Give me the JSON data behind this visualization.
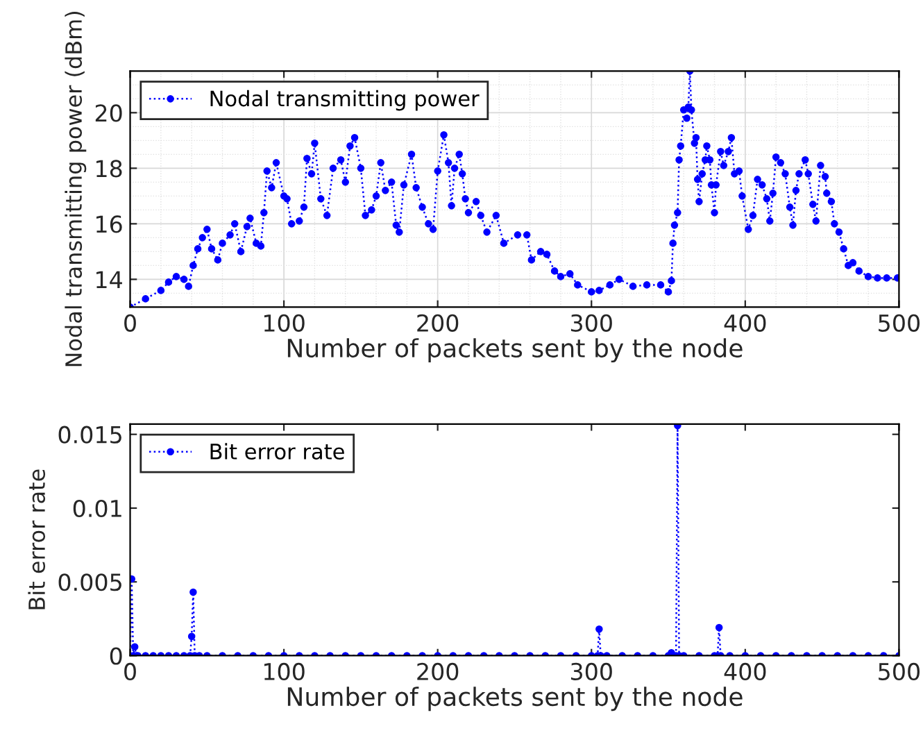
{
  "chart_data": [
    {
      "type": "line",
      "xlabel": "Number of packets sent by the node",
      "ylabel": "Nodal transmitting power (dBm)",
      "xlim": [
        0,
        500
      ],
      "ylim": [
        13,
        21.5
      ],
      "xticks": [
        0,
        100,
        200,
        300,
        400,
        500
      ],
      "yticks": [
        14,
        16,
        18,
        20
      ],
      "grid": true,
      "legend": "top left",
      "marker": "circle",
      "line_style": "dotted",
      "series": [
        {
          "name": "Nodal transmitting power",
          "color": "#0000ff",
          "x": [
            0,
            10,
            20,
            25,
            30,
            35,
            38,
            41,
            44,
            47,
            50,
            53,
            57,
            60,
            65,
            68,
            72,
            76,
            78,
            82,
            85,
            87,
            89,
            92,
            95,
            100,
            102,
            105,
            110,
            113,
            115,
            118,
            120,
            124,
            128,
            132,
            137,
            140,
            143,
            146,
            150,
            153,
            157,
            160,
            163,
            166,
            170,
            173,
            175,
            178,
            183,
            186,
            190,
            194,
            197,
            200,
            204,
            207,
            209,
            211,
            214,
            216,
            218,
            220,
            225,
            228,
            232,
            238,
            243,
            252,
            258,
            261,
            267,
            271,
            276,
            280,
            286,
            291,
            300,
            305,
            312,
            318,
            327,
            336,
            345,
            350,
            352,
            353,
            354,
            356,
            357,
            358,
            360,
            362,
            363,
            364,
            365,
            367,
            368,
            369,
            370,
            372,
            374,
            375,
            377,
            378,
            380,
            381,
            384,
            386,
            389,
            391,
            393,
            396,
            398,
            402,
            405,
            408,
            411,
            414,
            416,
            418,
            420,
            423,
            426,
            429,
            431,
            433,
            435,
            439,
            441,
            444,
            446,
            449,
            452,
            453,
            456,
            458,
            461,
            464,
            467,
            470,
            474,
            480,
            486,
            492,
            499
          ],
          "values": [
            13.0,
            13.3,
            13.6,
            13.9,
            14.1,
            14.0,
            13.75,
            14.5,
            15.1,
            15.5,
            15.8,
            15.1,
            14.7,
            15.3,
            15.6,
            16.0,
            15.0,
            15.9,
            16.2,
            15.3,
            15.2,
            16.4,
            17.9,
            17.3,
            18.2,
            17.0,
            16.9,
            16.0,
            16.1,
            16.6,
            18.35,
            17.8,
            18.9,
            16.9,
            16.3,
            18.0,
            18.3,
            17.5,
            18.8,
            19.1,
            18.0,
            16.3,
            16.5,
            17.0,
            18.2,
            17.2,
            17.5,
            15.95,
            15.7,
            17.4,
            18.5,
            17.3,
            16.6,
            16.0,
            15.8,
            17.9,
            19.2,
            18.2,
            16.65,
            18.0,
            18.5,
            17.8,
            16.9,
            16.4,
            16.8,
            16.3,
            15.7,
            16.3,
            15.3,
            15.6,
            15.6,
            14.7,
            15.0,
            14.9,
            14.3,
            14.1,
            14.2,
            13.8,
            13.55,
            13.6,
            13.8,
            14.0,
            13.75,
            13.8,
            13.8,
            13.55,
            13.95,
            15.3,
            15.95,
            16.4,
            18.3,
            18.8,
            20.1,
            19.8,
            20.2,
            21.5,
            20.1,
            18.9,
            19.1,
            17.6,
            16.8,
            17.8,
            18.3,
            18.8,
            18.3,
            17.4,
            16.4,
            17.4,
            18.6,
            18.1,
            18.6,
            19.1,
            17.8,
            17.9,
            17.0,
            15.8,
            16.3,
            17.6,
            17.4,
            16.9,
            16.1,
            17.1,
            18.4,
            18.2,
            17.8,
            16.6,
            15.95,
            17.2,
            17.8,
            18.3,
            17.8,
            16.7,
            16.1,
            18.1,
            17.7,
            17.1,
            16.8,
            16.0,
            15.7,
            15.1,
            14.5,
            14.6,
            14.3,
            14.1,
            14.05,
            14.05,
            14.05
          ]
        }
      ]
    },
    {
      "type": "line",
      "xlabel": "Number of packets sent by the node",
      "ylabel": "Bit error rate",
      "xlim": [
        0,
        500
      ],
      "ylim": [
        0,
        0.0157
      ],
      "xticks": [
        0,
        100,
        200,
        300,
        400,
        500
      ],
      "yticks": [
        0,
        {
          "value": 0.005,
          "label": "0.005"
        },
        {
          "value": 0.01,
          "label": "0.01"
        },
        {
          "value": 0.015,
          "label": "0.015"
        }
      ],
      "grid": false,
      "legend": "top left",
      "marker": "circle",
      "line_style": "dotted",
      "series": [
        {
          "name": "Bit error rate",
          "color": "#0000ff",
          "x": [
            0,
            1,
            2,
            3,
            4,
            5,
            10,
            15,
            20,
            25,
            30,
            35,
            39,
            40,
            41,
            42,
            45,
            50,
            60,
            70,
            80,
            90,
            100,
            110,
            120,
            130,
            140,
            150,
            160,
            170,
            180,
            190,
            200,
            210,
            220,
            230,
            240,
            250,
            260,
            270,
            280,
            290,
            300,
            304,
            305,
            306,
            310,
            320,
            330,
            340,
            350,
            351,
            352,
            353,
            355,
            356,
            357,
            360,
            370,
            380,
            382,
            383,
            384,
            390,
            400,
            410,
            420,
            430,
            440,
            450,
            460,
            470,
            480,
            490,
            500
          ],
          "values": [
            0,
            0.0052,
            0,
            0.0006,
            0,
            0,
            0,
            0,
            0,
            0,
            0,
            0,
            0,
            0.0013,
            0.0043,
            0,
            0,
            0,
            0,
            0,
            0,
            0,
            0,
            0,
            0,
            0,
            0,
            0,
            0,
            0,
            0,
            0,
            0,
            0,
            0,
            0,
            0,
            0,
            0,
            0,
            0,
            0,
            0,
            0,
            0.0018,
            0,
            0,
            0,
            0,
            0,
            0,
            0,
            0.0002,
            0,
            0,
            0.0156,
            0,
            0,
            0,
            0,
            0,
            0.0019,
            0,
            0,
            0,
            0,
            0,
            0,
            0,
            0,
            0,
            0,
            0,
            0,
            0
          ]
        }
      ]
    }
  ]
}
